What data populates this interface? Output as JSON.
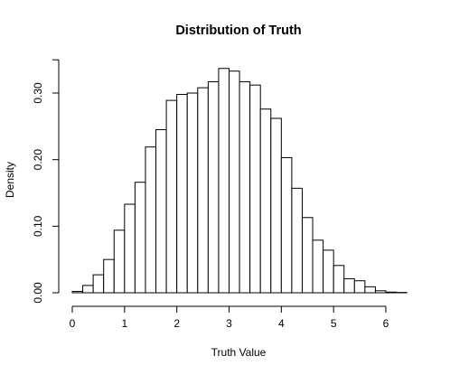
{
  "chart_data": {
    "type": "bar",
    "title": "Distribution of Truth",
    "xlabel": "Truth Value",
    "ylabel": "Density",
    "xlim": [
      0,
      6.4
    ],
    "ylim": [
      0,
      0.35
    ],
    "bin_width": 0.2,
    "bin_start": 0.0,
    "values": [
      0.002,
      0.011,
      0.027,
      0.05,
      0.094,
      0.133,
      0.166,
      0.219,
      0.245,
      0.289,
      0.298,
      0.3,
      0.308,
      0.317,
      0.337,
      0.333,
      0.317,
      0.312,
      0.276,
      0.262,
      0.203,
      0.157,
      0.113,
      0.079,
      0.064,
      0.041,
      0.021,
      0.018,
      0.009,
      0.003,
      0.001,
      0.0005
    ],
    "x_ticks": [
      "0",
      "1",
      "2",
      "3",
      "4",
      "5",
      "6"
    ],
    "x_tick_values": [
      0,
      1,
      2,
      3,
      4,
      5,
      6
    ],
    "y_ticks": [
      "0.00",
      "0.10",
      "0.20",
      "0.30"
    ],
    "y_tick_values": [
      0,
      0.1,
      0.2,
      0.3
    ],
    "grid": false,
    "legend": "none"
  }
}
